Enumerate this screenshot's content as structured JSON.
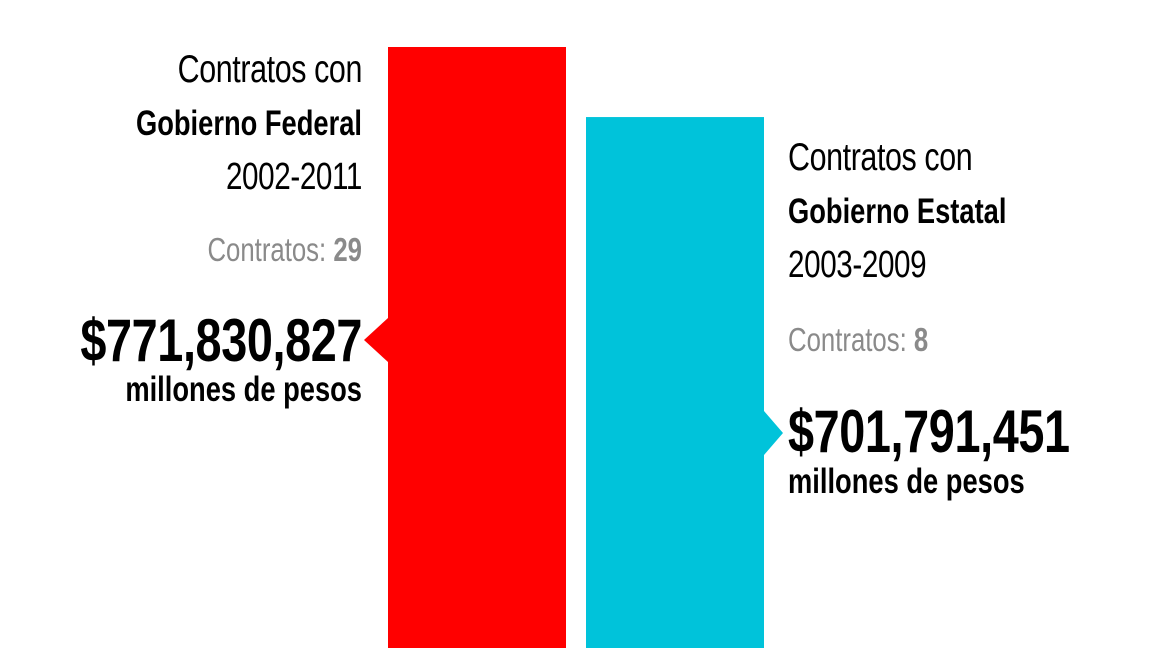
{
  "chart_data": {
    "type": "bar",
    "categories": [
      "Gobierno Federal",
      "Gobierno Estatal"
    ],
    "values": [
      771830827,
      701791451
    ],
    "colors": [
      "#ff0000",
      "#00c3da"
    ],
    "series": [
      {
        "prefix": "Contratos con",
        "entity": "Gobierno Federal",
        "period": "2002-2011",
        "contracts_label": "Contratos:",
        "contracts": "29",
        "amount": "$771,830,827",
        "unit": "millones de pesos",
        "value": 771830827,
        "color": "#ff0000"
      },
      {
        "prefix": "Contratos con",
        "entity": "Gobierno Estatal",
        "period": "2003-2009",
        "contracts_label": "Contratos:",
        "contracts": "8",
        "amount": "$701,791,451",
        "unit": "millones de pesos",
        "value": 701791451,
        "color": "#00c3da"
      }
    ]
  }
}
